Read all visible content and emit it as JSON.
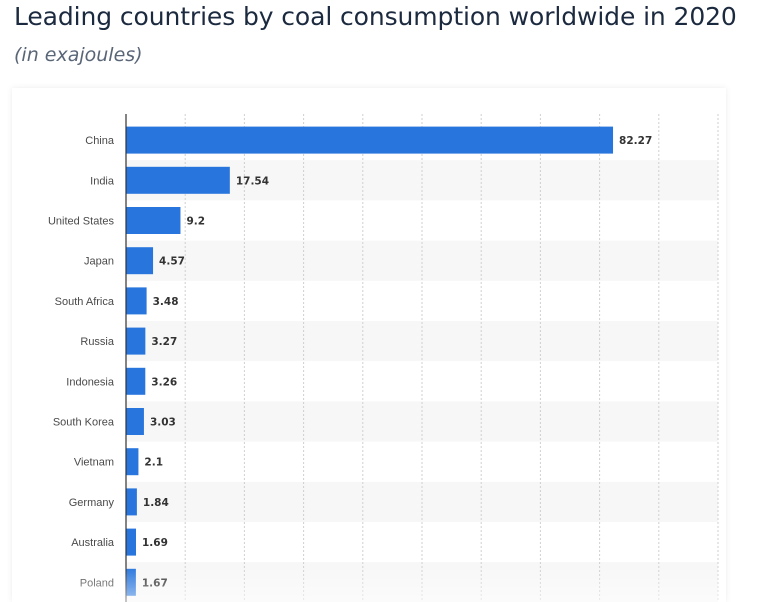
{
  "header": {
    "title": "Leading countries by coal consumption worldwide in 2020",
    "subtitle": "(in exajoules)"
  },
  "colors": {
    "bar": "#2876dd",
    "band": "#f7f7f7",
    "grid": "#cfcfcf",
    "axis": "#333333",
    "label": "#4a4a4a",
    "value": "#333333"
  },
  "chart_data": {
    "type": "bar",
    "orientation": "horizontal",
    "categories": [
      "China",
      "India",
      "United States",
      "Japan",
      "South Africa",
      "Russia",
      "Indonesia",
      "South Korea",
      "Vietnam",
      "Germany",
      "Australia",
      "Poland"
    ],
    "values": [
      82.27,
      17.54,
      9.2,
      4.57,
      3.48,
      3.27,
      3.26,
      3.03,
      2.1,
      1.84,
      1.69,
      1.67
    ],
    "value_labels": [
      "82.27",
      "17.54",
      "9.2",
      "4.57",
      "3.48",
      "3.27",
      "3.26",
      "3.03",
      "2.1",
      "1.84",
      "1.69",
      "1.67"
    ],
    "title": "Leading countries by coal consumption worldwide in 2020",
    "subtitle": "(in exajoules)",
    "xlim": [
      0,
      100
    ],
    "grid_step": 10,
    "grid": true,
    "legend": "none"
  }
}
